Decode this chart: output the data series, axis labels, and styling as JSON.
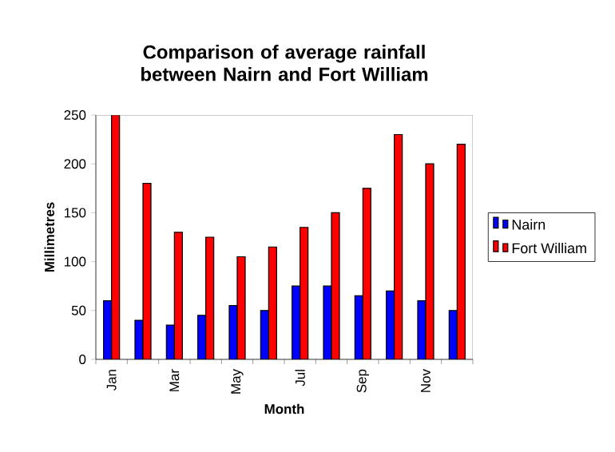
{
  "chart_data": {
    "type": "bar",
    "title": "Comparison of average rainfall between Nairn and Fort William",
    "xlabel": "Month",
    "ylabel": "Millimetres",
    "categories": [
      "Jan",
      null,
      "Mar",
      null,
      "May",
      null,
      "Jul",
      null,
      "Sep",
      null,
      "Nov",
      null
    ],
    "series": [
      {
        "name": "Nairn",
        "color": "#0000ff",
        "values": [
          60,
          40,
          35,
          45,
          55,
          50,
          75,
          75,
          65,
          70,
          60,
          50
        ]
      },
      {
        "name": "Fort William",
        "color": "#ff0000",
        "values": [
          250,
          180,
          130,
          125,
          105,
          115,
          135,
          150,
          175,
          230,
          200,
          220
        ]
      }
    ],
    "ylim": [
      0,
      250
    ],
    "yticks": [
      0,
      50,
      100,
      150,
      200,
      250
    ],
    "legend": "right"
  }
}
